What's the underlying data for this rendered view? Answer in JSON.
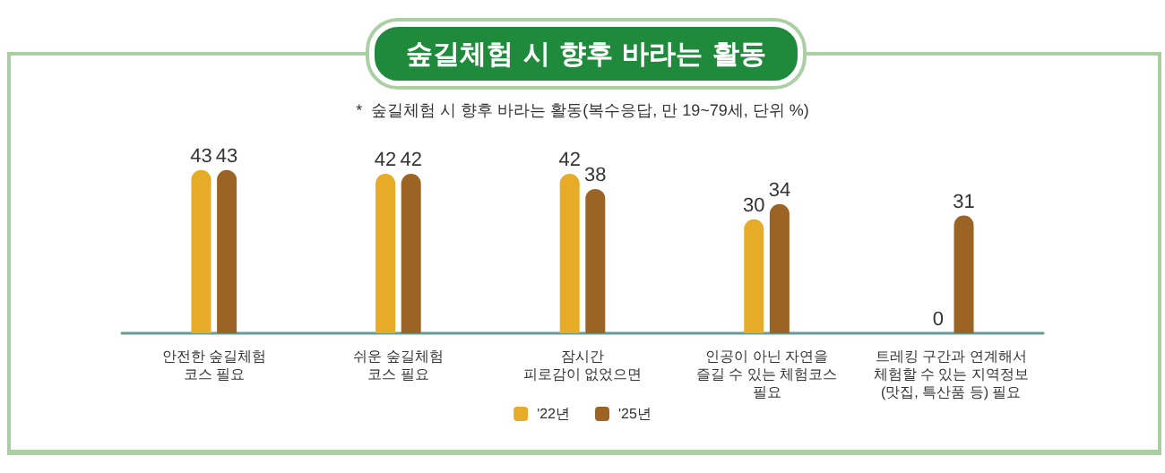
{
  "chart_data": {
    "type": "bar",
    "title": "숲길체험 시 향후 바라는 활동",
    "subtitle": "*  숲길체험 시 향후 바라는 활동(복수응답, 만 19~79세, 단위 %)",
    "categories": [
      "안전한 숲길체험\n코스 필요",
      "쉬운 숲길체험\n코스 필요",
      "잠시간\n피로감이 없었으면",
      "인공이 아닌 자연을\n즐길 수 있는 체험코스\n필요",
      "트레킹 구간과 연계해서\n체험할 수 있는 지역정보\n(맛집, 특산품 등) 필요"
    ],
    "series": [
      {
        "name": "'22년",
        "color": "#e6ac28",
        "values": [
          43,
          42,
          42,
          30,
          0
        ]
      },
      {
        "name": "'25년",
        "color": "#9b6424",
        "values": [
          43,
          42,
          38,
          34,
          31
        ]
      }
    ],
    "data_labels": true,
    "legend": "bottom",
    "grid": false
  }
}
